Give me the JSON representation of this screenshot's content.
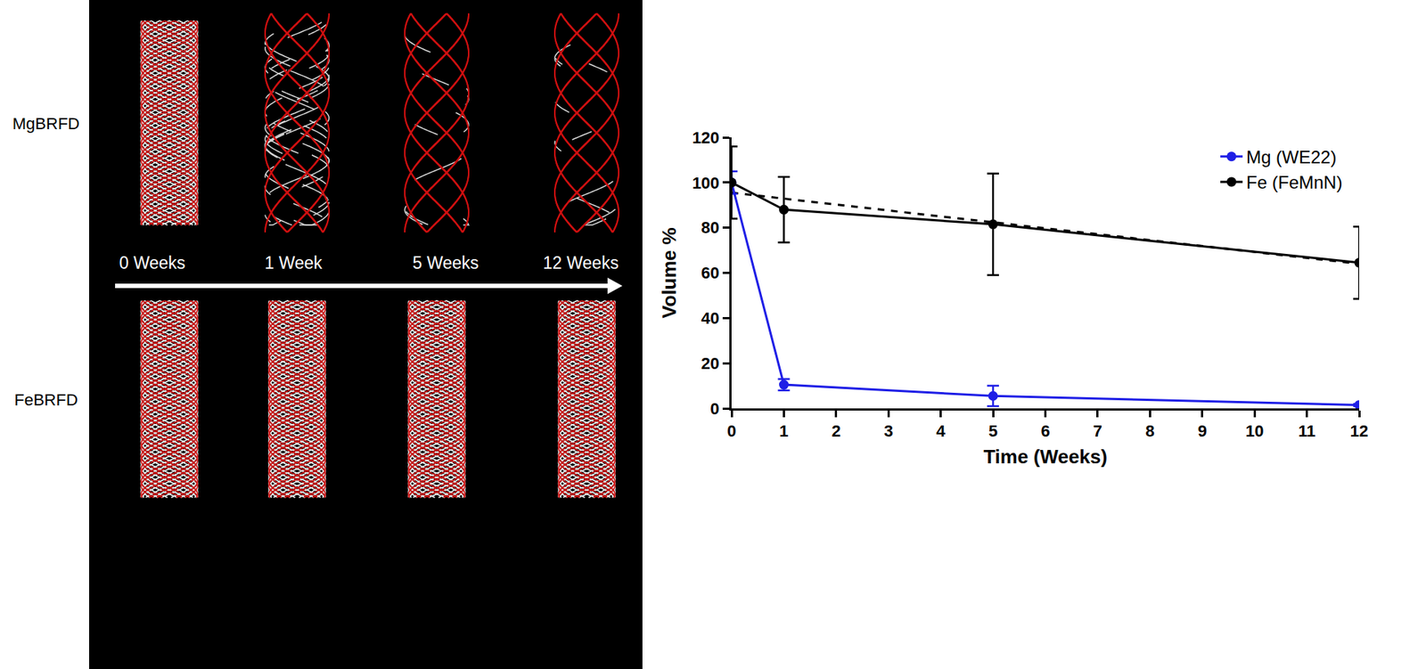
{
  "figure": {
    "rows": [
      "MgBRFD",
      "FeBRFD"
    ],
    "timepoints": [
      "0 Weeks",
      "1 Week",
      "5 Weeks",
      "12 Weeks"
    ]
  },
  "chart_data": {
    "type": "line",
    "x_label": "Time (Weeks)",
    "y_label": "Volume %",
    "xlim": [
      0,
      12
    ],
    "xticks": [
      0,
      1,
      2,
      3,
      4,
      5,
      6,
      7,
      8,
      9,
      10,
      11,
      12
    ],
    "ylim": [
      0,
      120
    ],
    "yticks": [
      0,
      20,
      40,
      60,
      80,
      100,
      120
    ],
    "grid": false,
    "legend": "upper right",
    "series": [
      {
        "name": "Mg (WE22)",
        "color": "#1f1fe6",
        "marker": "circle",
        "line_style": "solid",
        "x": [
          0,
          1,
          5,
          12
        ],
        "values": [
          100,
          10.5,
          5.5,
          1.5
        ],
        "error": [
          5,
          2.5,
          4.5,
          0.5
        ]
      },
      {
        "name": "Fe (FeMnN)",
        "color": "#000000",
        "marker": "circle",
        "line_style": "solid",
        "x": [
          0,
          1,
          5,
          12
        ],
        "values": [
          100,
          88,
          81.5,
          64.5
        ],
        "error": [
          16,
          14.5,
          22.5,
          16
        ]
      },
      {
        "color": "#000000",
        "marker": "none",
        "line_style": "dashed",
        "x": [
          0,
          12
        ],
        "values": [
          95.5,
          64
        ]
      }
    ]
  }
}
